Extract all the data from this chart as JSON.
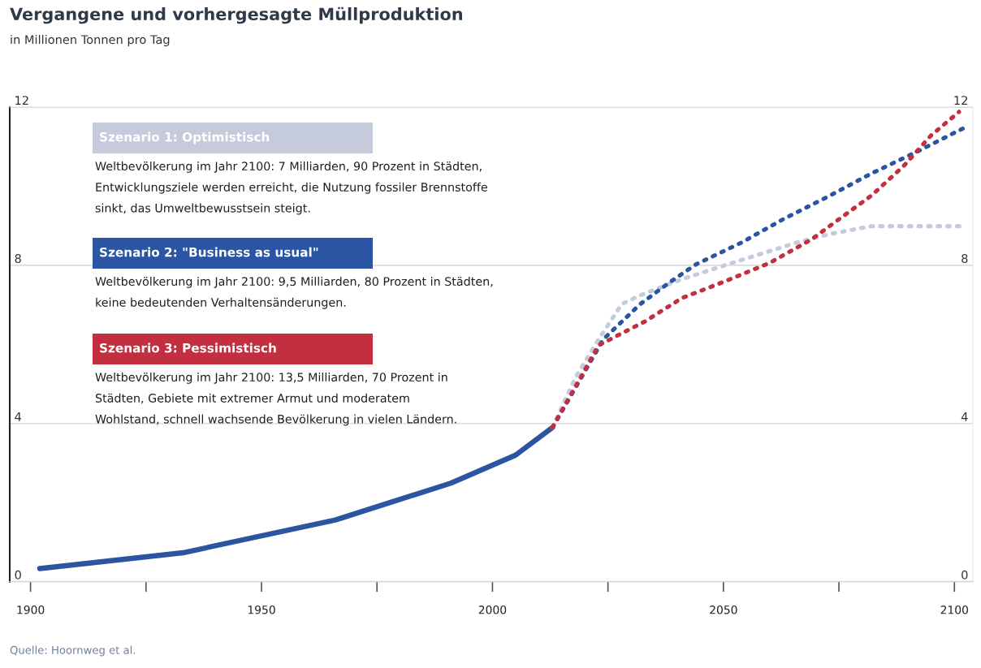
{
  "chart_data": {
    "type": "line",
    "title": "Vergangene und vorhergesagte Müllproduktion",
    "subtitle": "in Millionen Tonnen pro Tag",
    "annotations": [
      "Weltbevölkerung im Jahr 2100: 7 Milliarden, 90 Prozent in Städten,\nEntwicklungsziele werden erreicht, die Nutzung fossiler Brennstoffe\nsinkt, das Umweltbewusstsein steigt.",
      "Weltbevölkerung im Jahr 2100: 9,5 Milliarden, 80 Prozent in Städten,\nkeine bedeutenden Verhaltensänderungen.",
      "Weltbevölkerung im Jahr 2100: 13,5 Milliarden, 70 Prozent in\nStädten, Gebiete mit extremer Armut und moderatem\nWohlstand, schnell wachsende Bevölkerung in vielen Ländern.",
      "Quelle: Hoornweg et al."
    ],
    "xlim": [
      1895.5,
      2104
    ],
    "xticks": [
      1900,
      {
        "value": 1925,
        "label": null
      },
      1950,
      {
        "value": 1975,
        "label": null
      },
      2000,
      {
        "value": 2025,
        "label": null
      },
      2050,
      {
        "value": 2075,
        "label": null
      },
      2100
    ],
    "ylim": [
      0,
      12
    ],
    "yticks": [
      0,
      4,
      8,
      12
    ],
    "y2lim": [
      0,
      12
    ],
    "y2ticks": [
      0,
      4,
      8,
      12
    ],
    "grid": "y",
    "series": [
      {
        "color": "#2b55a0",
        "line_style": "solid",
        "x": [
          1902,
          1933,
          1966,
          1991,
          2005,
          2013
        ],
        "values": [
          0.33,
          0.73,
          1.56,
          2.49,
          3.2,
          3.9
        ]
      },
      {
        "name": "Szenario 1: Optimistisch",
        "color": "#c6cbdb",
        "line_style": "dotted",
        "x": [
          2013,
          2018,
          2023,
          2028,
          2032,
          2041,
          2053,
          2066,
          2073,
          2082,
          2102
        ],
        "values": [
          3.9,
          5.17,
          6.13,
          7.02,
          7.24,
          7.65,
          8.1,
          8.58,
          8.79,
          8.99,
          8.99
        ]
      },
      {
        "name": "Szenario 2: \"Business as usual\"",
        "color": "#2a55a3",
        "line_style": "dotted",
        "x": [
          2013,
          2024,
          2032,
          2038,
          2044,
          2054,
          2063,
          2073,
          2082,
          2092,
          2102
        ],
        "values": [
          3.9,
          6.13,
          7.02,
          7.54,
          8.02,
          8.58,
          9.17,
          9.76,
          10.32,
          10.88,
          11.47
        ]
      },
      {
        "name": "Szenario 3: Pessimistisch",
        "color": "#c22f3f",
        "line_style": "dotted",
        "x": [
          2013,
          2023,
          2033,
          2041,
          2050,
          2060,
          2069,
          2076,
          2082,
          2089,
          2095,
          2101
        ],
        "values": [
          3.9,
          5.98,
          6.58,
          7.17,
          7.58,
          8.06,
          8.65,
          9.25,
          9.76,
          10.51,
          11.29,
          11.88
        ]
      }
    ]
  }
}
